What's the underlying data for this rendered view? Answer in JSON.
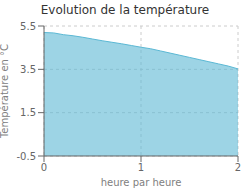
{
  "chart_data": {
    "type": "area",
    "title": "Evolution de la température",
    "xlabel": "heure par heure",
    "ylabel": "Température en °C",
    "x": [
      0,
      0.1,
      0.2,
      0.3,
      0.4,
      0.5,
      0.6,
      0.7,
      0.8,
      0.9,
      1.0,
      1.1,
      1.2,
      1.3,
      1.4,
      1.5,
      1.6,
      1.7,
      1.8,
      1.9,
      2.0
    ],
    "values": [
      5.2,
      5.18,
      5.1,
      5.05,
      4.98,
      4.9,
      4.82,
      4.75,
      4.68,
      4.6,
      4.52,
      4.45,
      4.35,
      4.25,
      4.15,
      4.05,
      3.95,
      3.85,
      3.75,
      3.65,
      3.52
    ],
    "color": "#5bb8d4",
    "xlim": [
      0,
      2
    ],
    "ylim": [
      -0.5,
      5.5
    ],
    "xticks": [
      0,
      1,
      2
    ],
    "yticks": [
      -0.5,
      1.5,
      3.5,
      5.5
    ],
    "grid": true
  }
}
